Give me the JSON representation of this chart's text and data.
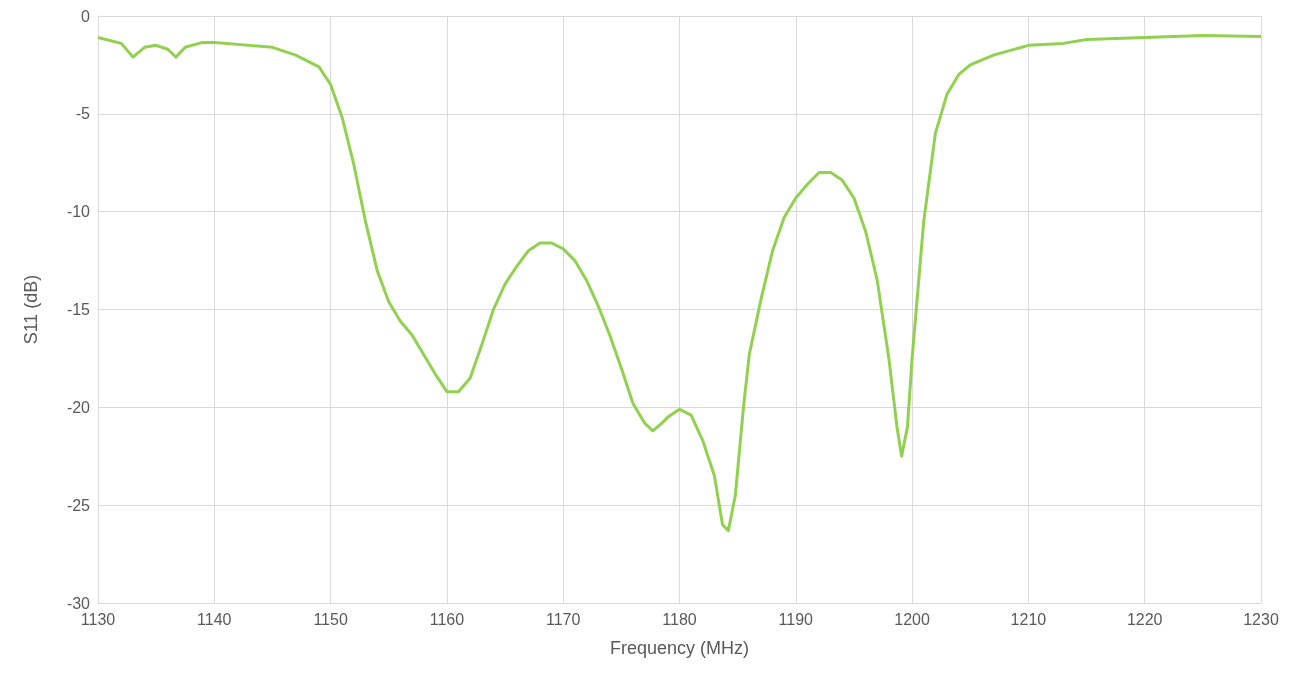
{
  "chart_data": {
    "type": "line",
    "xlabel": "Frequency (MHz)",
    "ylabel": "S11 (dB)",
    "xlim": [
      1130,
      1230
    ],
    "xticks": [
      1130,
      1140,
      1150,
      1160,
      1170,
      1180,
      1190,
      1200,
      1210,
      1220,
      1230
    ],
    "ylim": [
      -30,
      0
    ],
    "yticks": [
      -30,
      -25,
      -20,
      -15,
      -10,
      -5,
      0
    ],
    "grid": true,
    "marker": "none",
    "line_style": "solid",
    "x": [
      1130,
      1132,
      1133,
      1134,
      1135,
      1136,
      1136.7,
      1137.5,
      1139,
      1140,
      1142,
      1145,
      1147,
      1149,
      1150,
      1151,
      1152,
      1153,
      1154,
      1155,
      1156,
      1157,
      1158,
      1159,
      1160,
      1161,
      1162,
      1163,
      1164,
      1165,
      1166,
      1167,
      1168,
      1169,
      1170,
      1171,
      1172,
      1173,
      1174,
      1175,
      1176,
      1177,
      1177.7,
      1178.5,
      1179,
      1180,
      1181,
      1182,
      1183,
      1183.7,
      1184.2,
      1184.8,
      1185.5,
      1186,
      1187,
      1188,
      1189,
      1190,
      1191,
      1192,
      1193,
      1194,
      1195,
      1196,
      1197,
      1198,
      1198.7,
      1199.1,
      1199.6,
      1200,
      1201,
      1202,
      1203,
      1204,
      1205,
      1207,
      1210,
      1213,
      1215,
      1220,
      1225,
      1230
    ],
    "series": [
      {
        "color": "#92d050",
        "values": [
          -1.1,
          -1.4,
          -2.1,
          -1.6,
          -1.5,
          -1.7,
          -2.1,
          -1.6,
          -1.35,
          -1.35,
          -1.45,
          -1.6,
          -2.0,
          -2.6,
          -3.5,
          -5.2,
          -7.6,
          -10.5,
          -13.0,
          -14.6,
          -15.6,
          -16.3,
          -17.3,
          -18.3,
          -19.2,
          -19.2,
          -18.5,
          -16.8,
          -15.0,
          -13.7,
          -12.8,
          -12.0,
          -11.6,
          -11.6,
          -11.9,
          -12.5,
          -13.5,
          -14.8,
          -16.3,
          -18.0,
          -19.8,
          -20.8,
          -21.2,
          -20.8,
          -20.5,
          -20.1,
          -20.4,
          -21.7,
          -23.5,
          -26.0,
          -26.3,
          -24.5,
          -20.0,
          -17.3,
          -14.5,
          -12.0,
          -10.3,
          -9.3,
          -8.6,
          -8.0,
          -8.0,
          -8.4,
          -9.3,
          -11.0,
          -13.5,
          -17.5,
          -21.0,
          -22.5,
          -21.0,
          -17.5,
          -10.5,
          -6.0,
          -4.0,
          -3.0,
          -2.5,
          -2.0,
          -1.5,
          -1.4,
          -1.2,
          -1.1,
          -1.0,
          -1.05
        ]
      }
    ]
  }
}
